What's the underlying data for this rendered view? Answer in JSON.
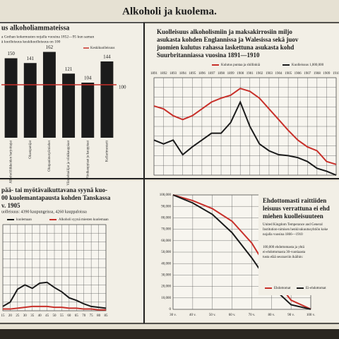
{
  "main_title": "Alkoholi ja kuolema.",
  "chart_data": [
    {
      "type": "bar",
      "title": [
        "us alkoholiammateissa"
      ],
      "notes": [
        "a Gothan kokemusten nojalla vuosina 1852—95 kun saman",
        "ä kuolleisuus keskikuolleisuus on 100"
      ],
      "categories": [
        "Alkoholiliikkeiden harjoittajat",
        "Oluenpanijat",
        "Olutpanimotyömiehet",
        "Viinitehtailijat ja viinikauppiaat",
        "Viinikauppiaat ja kauppiaat",
        "Kellarimestarit"
      ],
      "values": [
        150,
        141,
        162,
        121,
        104,
        144
      ],
      "color": "#1b1b1b",
      "reference": {
        "value": 100,
        "label": "Keskikuolleisuus",
        "color": "#c8302a"
      },
      "ylim": [
        0,
        180
      ]
    },
    {
      "type": "line",
      "title": [
        "Kuolleisuus alkoholismiin ja maksakirrosiin miljo",
        "asukasta kohden Englannissa ja Walesissa sekä juov",
        "juomien kulutus rahassa laskettuna asukasta kohd",
        "Suurbritanniassa vuosina 1891—1910"
      ],
      "x": [
        1891,
        1892,
        1893,
        1894,
        1895,
        1896,
        1897,
        1898,
        1899,
        1900,
        1901,
        1902,
        1903,
        1904,
        1905,
        1906,
        1907,
        1908,
        1909,
        1910
      ],
      "xlim": [
        1891,
        1910
      ],
      "ylim": [
        0,
        100
      ],
      "grid": true,
      "series": [
        {
          "name": "Kulutus puntaa ja shillinkiä",
          "color": "#c8302a",
          "values": [
            71,
            68,
            61,
            57,
            61,
            68,
            75,
            79,
            82,
            89,
            86,
            79,
            68,
            57,
            46,
            36,
            29,
            25,
            14,
            11
          ]
        },
        {
          "name": "Kuolleisuus 1,000,000",
          "color": "#1b1b1b",
          "values": [
            36,
            32,
            36,
            21,
            29,
            36,
            43,
            43,
            54,
            75,
            50,
            32,
            25,
            21,
            20,
            18,
            14,
            7,
            4,
            0
          ]
        }
      ]
    },
    {
      "type": "line",
      "title": [
        "pää- tai myötävaikuttavana syynä kuo-",
        "00 kuolemantapausta kohden Tanskassa",
        "v. 1905"
      ],
      "notes": [
        "uolleisuus: 4390 kaupungeissa, 4260 kauppaloissa"
      ],
      "x": [
        15,
        20,
        25,
        30,
        35,
        40,
        45,
        50,
        55,
        60,
        65,
        70,
        75,
        80,
        85
      ],
      "xlim": [
        15,
        85
      ],
      "ylim": [
        0,
        100
      ],
      "grid": true,
      "series": [
        {
          "name": "kuolemaan",
          "color": "#1b1b1b",
          "values": [
            5,
            10,
            25,
            30,
            26,
            32,
            33,
            27,
            22,
            15,
            12,
            8,
            5,
            4,
            3
          ]
        },
        {
          "name": "Alkoholi syynä miesten kuolemaan",
          "color": "#c8302a",
          "values": [
            2,
            2,
            3,
            4,
            5,
            5,
            5,
            4,
            4,
            3,
            3,
            2,
            2,
            1,
            1
          ]
        }
      ]
    },
    {
      "type": "line",
      "title": [
        "Ehdottomasti raittiiden",
        "leisuus verrattuna ei ehd",
        "miehen kuolleisuuteen"
      ],
      "notes": [
        "United Kingdom Temperance and General",
        "Institution-nimisen henkivakuutusyhtiön koke",
        "nojalla vuosina 1866—1910"
      ],
      "inner_notes": [
        "100,000 ehdottomasta ja yhtä",
        "ei-ehdottomasta 30-vuotiaasta",
        "tusta elää seuraaviin ikäihin:"
      ],
      "x": [
        30,
        40,
        50,
        60,
        70,
        80,
        90,
        100
      ],
      "xlim": [
        30,
        100
      ],
      "xticks": [
        {
          "value": 30,
          "label": "30 v."
        },
        {
          "value": 40,
          "label": "40 v."
        },
        {
          "value": 50,
          "label": "50 v."
        },
        {
          "value": 60,
          "label": "60 v."
        },
        {
          "value": 70,
          "label": "70 v."
        },
        {
          "value": 80,
          "label": "80 v."
        },
        {
          "value": 90,
          "label": "90 v."
        },
        {
          "value": 100,
          "label": "100 v."
        }
      ],
      "ylim": [
        0,
        100000
      ],
      "yticks": [
        {
          "value": 100000,
          "label": "100,000"
        },
        {
          "value": 90000,
          "label": "90,000"
        },
        {
          "value": 80000,
          "label": "80,000"
        },
        {
          "value": 70000,
          "label": "70,000"
        },
        {
          "value": 60000,
          "label": "60,000"
        },
        {
          "value": 50000,
          "label": "50,000"
        },
        {
          "value": 40000,
          "label": "40,000"
        },
        {
          "value": 30000,
          "label": "30,000"
        },
        {
          "value": 20000,
          "label": "20,000"
        },
        {
          "value": 10000,
          "label": "10,000"
        },
        0
      ],
      "grid": true,
      "series": [
        {
          "name": "Ehdottomat",
          "color": "#c8302a",
          "values": [
            100000,
            95000,
            88000,
            77000,
            58000,
            30000,
            8000,
            200
          ]
        },
        {
          "name": "Ei-ehdottomat",
          "color": "#1b1b1b",
          "values": [
            100000,
            93000,
            83000,
            67000,
            45000,
            20000,
            4000,
            100
          ]
        }
      ]
    }
  ]
}
